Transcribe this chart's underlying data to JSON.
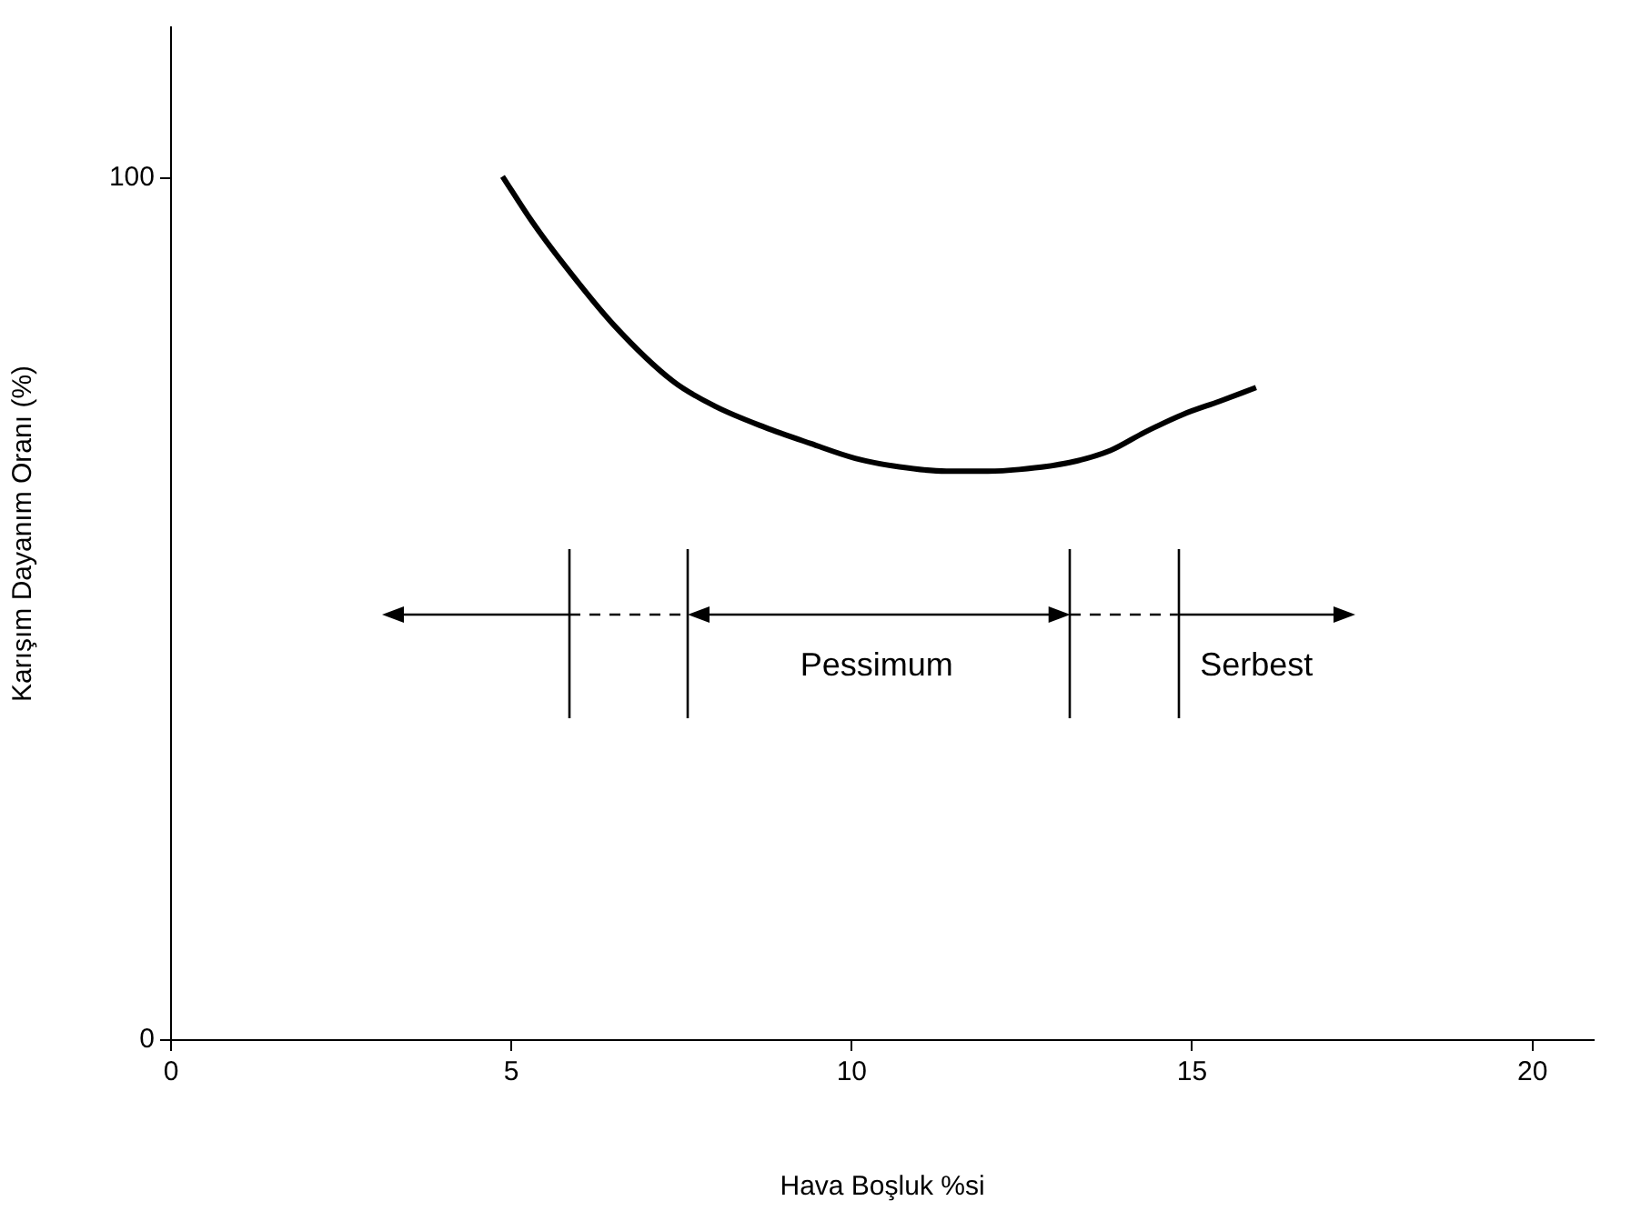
{
  "chart_data": {
    "type": "line",
    "xlabel": "Hava Boşluk %si",
    "ylabel": "Karışım Dayanım Oranı (%)",
    "xlim": [
      0,
      20.9
    ],
    "xticks": [
      0,
      5,
      10,
      15,
      20
    ],
    "ylim": [
      0,
      117.5
    ],
    "yticks": [
      0,
      100
    ],
    "grid": false,
    "legend": false,
    "series": [
      {
        "color": "#000000",
        "x": [
          4.87,
          5.3,
          5.78,
          6.5,
          7.38,
          8.0,
          8.72,
          9.4,
          10.05,
          10.7,
          11.39,
          12.0,
          12.46,
          13.2,
          13.8,
          14.3,
          14.87,
          15.4,
          15.94
        ],
        "values": [
          100.2,
          95,
          89.9,
          83,
          76.4,
          73.5,
          71.1,
          69.2,
          67.5,
          66.5,
          66.0,
          66.0,
          66.2,
          67.0,
          68.4,
          70.5,
          72.6,
          74.1,
          75.7
        ]
      }
    ],
    "annotations": [
      "Pessimum",
      "Serbest"
    ]
  }
}
